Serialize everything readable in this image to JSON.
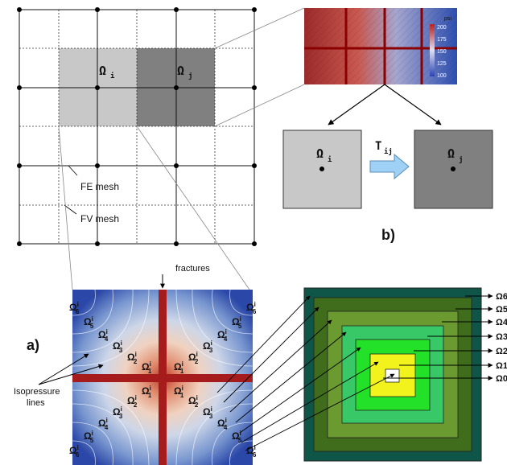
{
  "colors": {
    "cell_i": "#c8c8c8",
    "cell_j": "#808080",
    "fracture": "#a61c1c",
    "box_outer": "#0f5548",
    "box_yellow": "#f2f21c",
    "arrow_fill": "#9fd0f5"
  },
  "grid": {
    "fe_mesh_label": "FE mesh",
    "fv_mesh_label": "FV mesh",
    "omega_i": "Ω",
    "omega_i_sub": "i",
    "omega_j": "Ω",
    "omega_j_sub": "j"
  },
  "inset_b": {
    "colorbar_unit": "psi",
    "colorbar_ticks": [
      "200",
      "175",
      "150",
      "125",
      "100"
    ],
    "omega_i": "Ω",
    "omega_i_sub": "i",
    "omega_j": "Ω",
    "omega_j_sub": "j",
    "transmissibility": "T",
    "transmissibility_sub": "ij",
    "panel_label": "b)"
  },
  "panel_a": {
    "panel_label": "a)",
    "fractures_label": "fractures",
    "isopressure_line1": "Isopressure",
    "isopressure_line2": "lines",
    "omega_symbol": "Ω",
    "omega_sup": "i",
    "omega_indices": [
      "1",
      "2",
      "3",
      "4",
      "5",
      "6"
    ]
  },
  "nested_boxes": {
    "right_labels": [
      "Ω6",
      "Ω5",
      "Ω4",
      "Ω3",
      "Ω2",
      "Ω1",
      "Ω0"
    ]
  }
}
